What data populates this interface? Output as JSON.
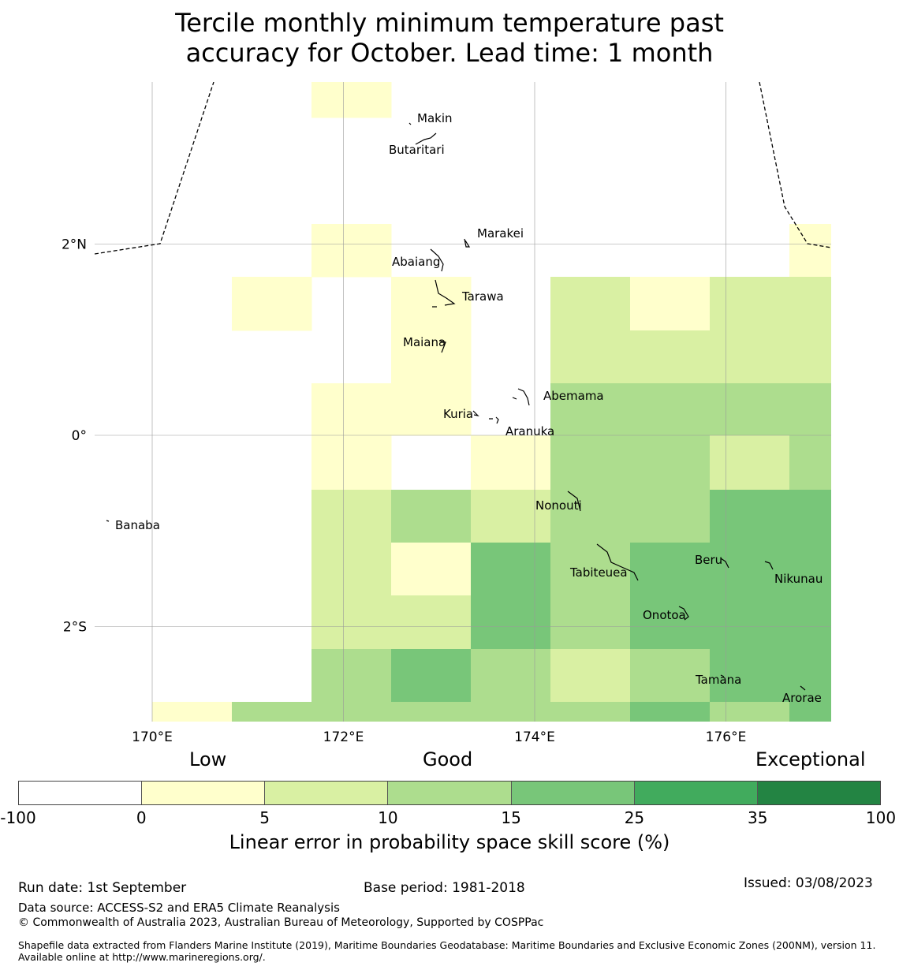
{
  "title_line1": "Tercile monthly minimum temperature past",
  "title_line2": "accuracy for October. Lead time: 1 month",
  "axes": {
    "x_ticks": [
      {
        "label": "170°E",
        "lon": 170
      },
      {
        "label": "172°E",
        "lon": 172
      },
      {
        "label": "174°E",
        "lon": 174
      },
      {
        "label": "176°E",
        "lon": 176
      }
    ],
    "y_ticks": [
      {
        "label": "2°N",
        "lat": 2
      },
      {
        "label": "0°",
        "lat": 0
      },
      {
        "label": "2°S",
        "lat": -2
      }
    ]
  },
  "colors": {
    "bins": [
      "#ffffff",
      "#ffffcc",
      "#d9f0a3",
      "#addd8e",
      "#78c679",
      "#41ab5d",
      "#238443"
    ]
  },
  "islands": [
    {
      "name": "Makin",
      "lon": 173.0,
      "lat": 3.4
    },
    {
      "name": "Butaritari",
      "lon": 172.8,
      "lat": 3.1
    },
    {
      "name": "Marakei",
      "lon": 173.3,
      "lat": 2.0
    },
    {
      "name": "Abaiang",
      "lon": 172.9,
      "lat": 1.8
    },
    {
      "name": "Tarawa",
      "lon": 173.0,
      "lat": 1.45
    },
    {
      "name": "Maiana",
      "lon": 173.0,
      "lat": 0.95
    },
    {
      "name": "Abemama",
      "lon": 173.9,
      "lat": 0.4
    },
    {
      "name": "Kuria",
      "lon": 173.4,
      "lat": 0.22
    },
    {
      "name": "Aranuka",
      "lon": 173.6,
      "lat": 0.15
    },
    {
      "name": "Banaba",
      "lon": 169.5,
      "lat": -0.86
    },
    {
      "name": "Nonouti",
      "lon": 174.4,
      "lat": -0.65
    },
    {
      "name": "Tabiteuea",
      "lon": 174.8,
      "lat": -1.3
    },
    {
      "name": "Beru",
      "lon": 176.0,
      "lat": -1.3
    },
    {
      "name": "Nikunau",
      "lon": 176.45,
      "lat": -1.35
    },
    {
      "name": "Onotoa",
      "lon": 175.55,
      "lat": -1.85
    },
    {
      "name": "Tamana",
      "lon": 175.95,
      "lat": -2.5
    },
    {
      "name": "Arorae",
      "lon": 176.8,
      "lat": -2.65
    }
  ],
  "legend": {
    "categories": [
      "Low",
      "Good",
      "Exceptional"
    ],
    "ticks": [
      "-100",
      "0",
      "5",
      "10",
      "15",
      "25",
      "35",
      "100"
    ],
    "title": "Linear error in probability space skill score (%)"
  },
  "footer": {
    "run_date": "Run date: 1st September",
    "base_period": "Base period: 1981-2018",
    "issued": "Issued: 03/08/2023",
    "data_source": "Data source: ACCESS-S2 and ERA5 Climate Reanalysis",
    "copyright": "© Commonwealth of Australia 2023, Australian Bureau of Meteorology, Supported by COSPPac",
    "shapefile": "Shapefile data extracted from Flanders Marine Institute (2019), Maritime Boundaries Geodatabase: Maritime Boundaries and Exclusive Economic Zones (200NM), version 11. Available online at http://www.marineregions.org/."
  },
  "chart_data": {
    "type": "heatmap",
    "title": "Tercile monthly minimum temperature past accuracy for October. Lead time: 1 month",
    "colorbar_label": "Linear error in probability space skill score (%)",
    "bin_edges": [
      -100,
      0,
      5,
      10,
      15,
      25,
      35,
      100
    ],
    "note_bins": "grid value = colour bin index (0: -100–0, 1: 0–5, 2: 5–10, 3: 10–15, 4: 15–25)",
    "cell_lon_edges": [
      169.4,
      170.13,
      170.96,
      171.79,
      172.63,
      173.46,
      174.29,
      175.13,
      175.96,
      176.79,
      177.2
    ],
    "cell_lat_edges": [
      3.65,
      2.0,
      2.2,
      1.65,
      1.1,
      0.55,
      0.0,
      -0.55,
      -1.1,
      -1.65,
      -2.2,
      -2.75,
      -3.0
    ],
    "grid_rows_top_to_bottom": [
      [
        0,
        0,
        0,
        1,
        0,
        0,
        0,
        0,
        0,
        0
      ],
      [
        0,
        0,
        0,
        0,
        0,
        0,
        0,
        0,
        0,
        0
      ],
      [
        0,
        0,
        0,
        1,
        0,
        0,
        0,
        0,
        0,
        1
      ],
      [
        0,
        0,
        1,
        0,
        1,
        0,
        2,
        1,
        2,
        2
      ],
      [
        0,
        0,
        0,
        0,
        1,
        0,
        2,
        2,
        2,
        2
      ],
      [
        0,
        0,
        0,
        1,
        1,
        0,
        3,
        3,
        3,
        3
      ],
      [
        0,
        0,
        0,
        1,
        0,
        1,
        3,
        3,
        2,
        3
      ],
      [
        0,
        0,
        0,
        2,
        3,
        2,
        3,
        3,
        4,
        4
      ],
      [
        0,
        0,
        0,
        2,
        1,
        4,
        3,
        4,
        4,
        4
      ],
      [
        0,
        0,
        0,
        2,
        2,
        4,
        3,
        4,
        4,
        4
      ],
      [
        0,
        0,
        0,
        3,
        4,
        3,
        2,
        3,
        4,
        4
      ],
      [
        0,
        1,
        3,
        3,
        3,
        3,
        3,
        4,
        3,
        4
      ]
    ]
  }
}
